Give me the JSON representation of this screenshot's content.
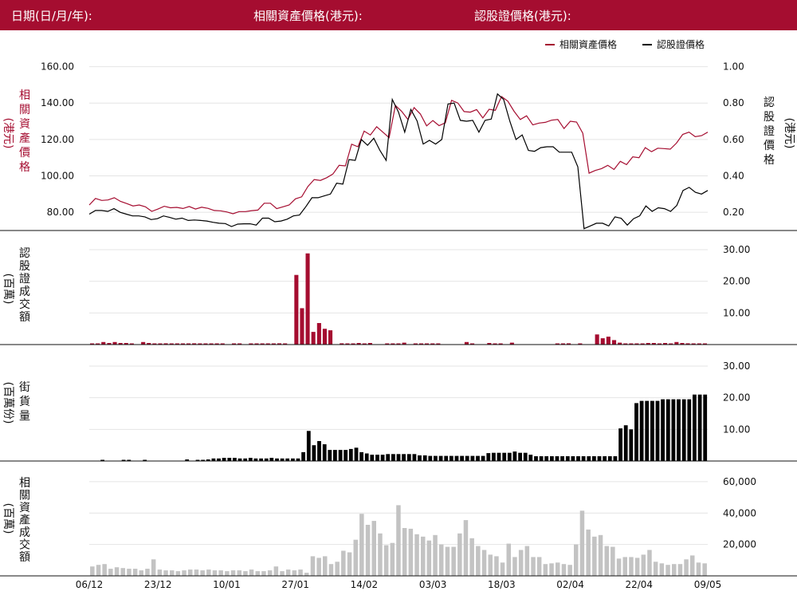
{
  "header": {
    "date_label": "日期(日/月/年):",
    "underlying_label": "相關資產價格(港元):",
    "warrant_label": "認股證價格(港元):"
  },
  "colors": {
    "accent": "#a50d30",
    "warrant": "#000000",
    "turnover_gray": "#c3c3c3"
  },
  "chart_data": [
    {
      "type": "line",
      "legend": [
        "相關資產價格",
        "認股證價格"
      ],
      "legend_position": "top-right",
      "left_axis_label": "相關資產價格",
      "left_axis_unit": "(港元)",
      "right_axis_label": "認股證價格",
      "right_axis_unit": "(港元)",
      "left_ticks": [
        "80.00",
        "100.00",
        "120.00",
        "140.00",
        "160.00"
      ],
      "right_ticks": [
        "0.20",
        "0.40",
        "0.60",
        "0.80",
        "1.00"
      ],
      "left_ylim": [
        70,
        162
      ],
      "right_ylim": [
        0.1,
        1.02
      ],
      "series": [
        {
          "name": "相關資產價格",
          "axis": "left",
          "values": [
            84,
            87.6,
            86.5,
            86.8,
            88,
            86,
            84.8,
            83.5,
            84,
            83,
            80.5,
            81.8,
            83.3,
            82.5,
            82.7,
            82.1,
            83.2,
            81.8,
            82.8,
            82.2,
            81,
            80.8,
            80.2,
            79.2,
            80.4,
            80.4,
            80.9,
            81.2,
            85,
            85,
            82,
            83,
            84,
            87.4,
            88.5,
            94.2,
            98,
            97.5,
            99,
            101,
            105.8,
            105.5,
            117.4,
            116,
            124.6,
            122.5,
            127,
            124,
            121,
            138.7,
            135.5,
            131,
            137.5,
            134,
            127.5,
            130.4,
            127.6,
            129.2,
            141.5,
            140,
            135.3,
            135,
            136.4,
            131.8,
            136.6,
            136,
            143.6,
            141,
            135.5,
            131,
            133,
            128,
            129,
            129.4,
            130.6,
            131,
            126,
            130,
            129.6,
            123.5,
            101.5,
            103,
            104,
            105.8,
            103.5,
            108,
            106.2,
            110.5,
            110,
            115.5,
            113.3,
            115.2,
            115,
            114.7,
            118,
            122.8,
            124,
            121.5,
            122.1,
            124
          ]
        },
        {
          "name": "認股證價格",
          "axis": "right",
          "values": [
            0.19,
            0.21,
            0.21,
            0.205,
            0.22,
            0.2,
            0.19,
            0.18,
            0.18,
            0.175,
            0.16,
            0.165,
            0.18,
            0.172,
            0.162,
            0.168,
            0.155,
            0.158,
            0.155,
            0.152,
            0.145,
            0.14,
            0.138,
            0.122,
            0.135,
            0.137,
            0.137,
            0.13,
            0.168,
            0.168,
            0.148,
            0.152,
            0.162,
            0.18,
            0.185,
            0.23,
            0.28,
            0.28,
            0.29,
            0.3,
            0.36,
            0.355,
            0.49,
            0.485,
            0.6,
            0.568,
            0.607,
            0.54,
            0.485,
            0.82,
            0.75,
            0.64,
            0.765,
            0.702,
            0.575,
            0.595,
            0.575,
            0.6,
            0.795,
            0.8,
            0.705,
            0.7,
            0.705,
            0.64,
            0.705,
            0.712,
            0.85,
            0.82,
            0.7,
            0.6,
            0.625,
            0.54,
            0.535,
            0.555,
            0.56,
            0.56,
            0.53,
            0.53,
            0.53,
            0.45,
            0.11,
            0.125,
            0.14,
            0.14,
            0.125,
            0.175,
            0.167,
            0.13,
            0.165,
            0.18,
            0.235,
            0.205,
            0.225,
            0.22,
            0.205,
            0.238,
            0.32,
            0.337,
            0.31,
            0.3,
            0.32
          ]
        }
      ]
    },
    {
      "type": "bar",
      "label": "認股證成交額",
      "unit": "(百萬)",
      "ticks": [
        "10.00",
        "20.00",
        "30.00"
      ],
      "ylim": [
        0,
        32
      ],
      "values": [
        0.2,
        0.2,
        0.8,
        0.5,
        0.8,
        0.5,
        0.5,
        0.3,
        0,
        0.8,
        0.5,
        0.3,
        0.3,
        0.4,
        0.3,
        0.3,
        0.3,
        0.2,
        0.4,
        0.3,
        0.3,
        0.2,
        0.2,
        0.2,
        0,
        0.2,
        0.2,
        0,
        0.3,
        0.2,
        0.2,
        0.3,
        0.3,
        0.4,
        0.2,
        0,
        22,
        11.5,
        28.8,
        4,
        6.8,
        5,
        4.5,
        0,
        0.4,
        0.2,
        0.3,
        0.5,
        0.3,
        0.5,
        0,
        0,
        0.3,
        0.3,
        0.2,
        0.6,
        0,
        0.2,
        0.2,
        0.2,
        0.3,
        0.2,
        0,
        0,
        0,
        0,
        0.8,
        0.2,
        0,
        0,
        0.5,
        0.3,
        0.3,
        0,
        0.6,
        0,
        0,
        0,
        0,
        0,
        0,
        0,
        0.2,
        0.2,
        0.4,
        0,
        0.3,
        0,
        0,
        3.2,
        2,
        2.5,
        1.4,
        0.6,
        0.3,
        0.3,
        0.2,
        0.3,
        0.5,
        0.5,
        0.3,
        0.5,
        0.3,
        0.8,
        0.5,
        0.4,
        0.3,
        0.3,
        0.2
      ]
    },
    {
      "type": "bar",
      "label": "街貨量",
      "unit": "(百萬份)",
      "ticks": [
        "10.00",
        "20.00",
        "30.00"
      ],
      "ylim": [
        0,
        32
      ],
      "values": [
        0,
        0,
        0.3,
        0,
        0,
        0,
        0.3,
        0.3,
        0,
        0,
        0.3,
        0,
        0,
        0,
        0,
        0,
        0,
        0,
        0.5,
        0,
        0.3,
        0.3,
        0.5,
        0.8,
        0.8,
        1,
        1,
        1,
        0.8,
        0.8,
        1,
        0.8,
        0.8,
        0.8,
        1,
        0.8,
        0.8,
        0.8,
        0.8,
        0.8,
        2.8,
        9.5,
        5,
        6.3,
        5.3,
        3.5,
        3.5,
        3.5,
        3.5,
        3.8,
        4.2,
        2.8,
        2.4,
        2,
        2,
        2,
        2.2,
        2.2,
        2.2,
        2.2,
        2.2,
        2.2,
        1.8,
        1.8,
        1.6,
        1.6,
        1.6,
        1.6,
        1.6,
        1.6,
        1.6,
        1.6,
        1.6,
        1.6,
        1.6,
        2.5,
        2.6,
        2.6,
        2.6,
        2.6,
        3,
        2.6,
        2.6,
        2,
        1.5,
        1.5,
        1.5,
        1.5,
        1.5,
        1.5,
        1.5,
        1.5,
        1.5,
        1.5,
        1.5,
        1.5,
        1.5,
        1.5,
        1.5,
        1.5,
        10.3,
        11.3,
        10,
        18.3,
        19,
        19,
        19,
        19,
        19.5,
        19.5,
        19.5,
        19.5,
        19.5,
        19.5,
        21,
        21,
        21
      ]
    },
    {
      "type": "bar",
      "label": "相關資產成交額",
      "unit": "(百萬)",
      "ticks": [
        "20,000",
        "40,000",
        "60,000"
      ],
      "ylim": [
        0,
        64000
      ],
      "values": [
        6000,
        7000,
        7500,
        4500,
        5500,
        5000,
        4500,
        4500,
        3500,
        4500,
        10500,
        4000,
        3500,
        3500,
        3000,
        3500,
        4000,
        4000,
        3500,
        4000,
        3500,
        3500,
        3000,
        3500,
        3500,
        3000,
        4000,
        3000,
        3000,
        3500,
        6000,
        3000,
        4000,
        3500,
        4000,
        2000,
        12500,
        11500,
        12500,
        7500,
        9000,
        16000,
        15000,
        23000,
        39500,
        32500,
        35000,
        27000,
        19500,
        21000,
        45000,
        30500,
        30000,
        26500,
        25000,
        22500,
        26000,
        20000,
        18500,
        18500,
        27000,
        35500,
        24000,
        19000,
        16500,
        13500,
        12500,
        8500,
        20500,
        12000,
        16500,
        19000,
        12000,
        12000,
        7500,
        8000,
        8500,
        7500,
        7000,
        20000,
        41500,
        29500,
        25000,
        26000,
        19000,
        18500,
        11000,
        12000,
        12000,
        11500,
        13500,
        16500,
        9000,
        8000,
        7000,
        7500,
        7500,
        10500,
        13000,
        8500,
        8000
      ]
    },
    {
      "type": "x-axis",
      "labels": [
        "06/12",
        "23/12",
        "10/01",
        "27/01",
        "14/02",
        "03/03",
        "18/03",
        "02/04",
        "22/04",
        "09/05"
      ]
    }
  ]
}
